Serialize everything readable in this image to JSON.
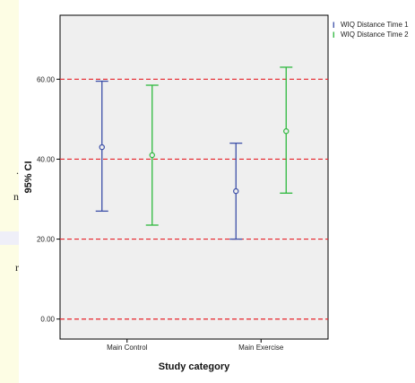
{
  "side_panel": {
    "fragments": [
      ".",
      "n",
      "r"
    ]
  },
  "chart_data": {
    "type": "errorbar",
    "categories": [
      "Main Control",
      "Main Exercise"
    ],
    "xlabel": "Study category",
    "ylabel": "95% CI",
    "ylim": [
      -5,
      76
    ],
    "yticks": [
      0,
      20,
      40,
      60
    ],
    "ytick_labels": [
      "0.00",
      "20.00",
      "40.00",
      "60.00"
    ],
    "reference_lines": [
      0,
      20,
      40,
      60
    ],
    "grid": false,
    "legend_position": "top-right, outside plot",
    "background_color": "#efefef",
    "reference_line_color": "#e8232a",
    "series": [
      {
        "name": "WIQ  Distance Time 1",
        "color": "#3c4fa8",
        "means": [
          43,
          32
        ],
        "lower": [
          27,
          20
        ],
        "upper": [
          59.5,
          44
        ]
      },
      {
        "name": "WIQ  Distance Time 2",
        "color": "#2db83d",
        "means": [
          41,
          47
        ],
        "lower": [
          23.5,
          31.5
        ],
        "upper": [
          58.5,
          63
        ]
      }
    ]
  }
}
